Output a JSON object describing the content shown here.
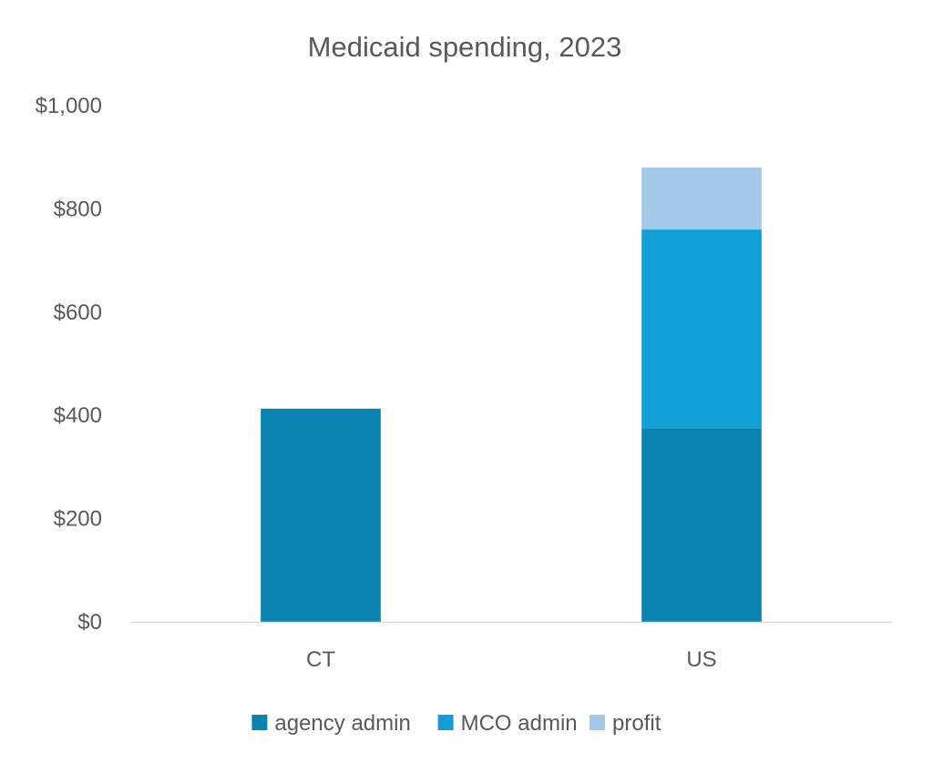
{
  "chart_data": {
    "type": "bar",
    "stacked": true,
    "title": "Medicaid spending, 2023",
    "xlabel": "",
    "ylabel": "",
    "categories": [
      "CT",
      "US"
    ],
    "series": [
      {
        "name": "agency admin",
        "values": [
          413,
          375
        ],
        "color": "#0a83b1"
      },
      {
        "name": "MCO admin",
        "values": [
          0,
          385
        ],
        "color": "#129fd8"
      },
      {
        "name": "profit",
        "values": [
          0,
          120
        ],
        "color": "#a3c8e8"
      }
    ],
    "ylim": [
      0,
      1000
    ],
    "yticks": [
      0,
      200,
      400,
      600,
      800,
      1000
    ],
    "ytick_labels": [
      "$0",
      "$200",
      "$400",
      "$600",
      "$800",
      "$1,000"
    ],
    "grid": false,
    "legend_position": "bottom",
    "axis_color": "#d9d9d9"
  }
}
